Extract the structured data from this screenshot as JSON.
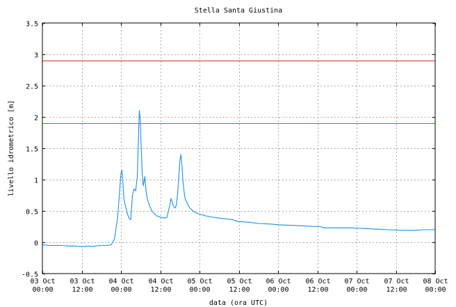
{
  "chart_data": {
    "type": "line",
    "title": "Stella Santa Giustina",
    "xlabel": "data (ora UTC)",
    "ylabel": "livello idrometrico [m]",
    "ylim": [
      -0.5,
      3.5
    ],
    "yticks": [
      -0.5,
      0,
      0.5,
      1,
      1.5,
      2,
      2.5,
      3,
      3.5
    ],
    "xlim": [
      0,
      120
    ],
    "xticks": [
      {
        "x": 0,
        "label": "03 Oct",
        "label2": "00:00"
      },
      {
        "x": 12,
        "label": "03 Oct",
        "label2": "12:00"
      },
      {
        "x": 24,
        "label": "04 Oct",
        "label2": "00:00"
      },
      {
        "x": 36,
        "label": "04 Oct",
        "label2": "12:00"
      },
      {
        "x": 48,
        "label": "05 Oct",
        "label2": "00:00"
      },
      {
        "x": 60,
        "label": "05 Oct",
        "label2": "12:00"
      },
      {
        "x": 72,
        "label": "06 Oct",
        "label2": "00:00"
      },
      {
        "x": 84,
        "label": "06 Oct",
        "label2": "12:00"
      },
      {
        "x": 96,
        "label": "07 Oct",
        "label2": "00:00"
      },
      {
        "x": 108,
        "label": "07 Oct",
        "label2": "12:00"
      },
      {
        "x": 120,
        "label": "08 Oct",
        "label2": "00:00"
      }
    ],
    "grid": true,
    "thresholds": [
      {
        "value": 2.9,
        "color": "#e8221a"
      },
      {
        "value": 1.9,
        "color": "#1fb51f"
      }
    ],
    "series": [
      {
        "color": "#1a8fe6",
        "x": [
          0,
          2,
          4,
          6,
          8,
          10,
          12,
          14,
          15,
          16,
          18,
          20,
          21,
          22,
          23,
          23.5,
          24,
          24.3,
          24.6,
          24.9,
          25.2,
          25.5,
          26,
          26.5,
          27,
          27.5,
          28,
          28.5,
          29,
          29.3,
          29.6,
          29.9,
          30.2,
          30.5,
          30.8,
          31,
          31.3,
          31.6,
          32,
          32.5,
          33,
          33.5,
          34,
          35,
          36,
          37,
          38,
          39,
          39.3,
          39.6,
          40,
          40.3,
          40.6,
          41,
          41.5,
          42,
          42.3,
          42.6,
          42.9,
          43.2,
          43.5,
          44,
          44.5,
          45,
          46,
          47,
          48,
          50,
          52,
          55,
          58,
          60,
          63,
          66,
          70,
          72,
          76,
          80,
          84,
          85,
          86,
          90,
          94,
          98,
          102,
          106,
          110,
          114,
          116,
          120
        ],
        "values": [
          -0.04,
          -0.05,
          -0.05,
          -0.05,
          -0.06,
          -0.06,
          -0.07,
          -0.06,
          -0.07,
          -0.06,
          -0.05,
          -0.05,
          -0.04,
          0.05,
          0.4,
          0.75,
          1.1,
          1.15,
          0.95,
          0.7,
          0.62,
          0.55,
          0.45,
          0.38,
          0.36,
          0.75,
          0.85,
          0.82,
          1.05,
          1.6,
          2.1,
          1.95,
          1.5,
          1.1,
          0.9,
          0.95,
          1.05,
          0.85,
          0.7,
          0.62,
          0.55,
          0.5,
          0.46,
          0.42,
          0.4,
          0.39,
          0.39,
          0.6,
          0.7,
          0.65,
          0.58,
          0.56,
          0.55,
          0.6,
          0.9,
          1.3,
          1.4,
          1.25,
          1.0,
          0.85,
          0.72,
          0.65,
          0.6,
          0.55,
          0.5,
          0.47,
          0.45,
          0.42,
          0.4,
          0.38,
          0.36,
          0.33,
          0.32,
          0.3,
          0.29,
          0.28,
          0.27,
          0.26,
          0.25,
          0.25,
          0.23,
          0.23,
          0.23,
          0.22,
          0.21,
          0.2,
          0.19,
          0.19,
          0.2,
          0.2
        ]
      }
    ]
  }
}
